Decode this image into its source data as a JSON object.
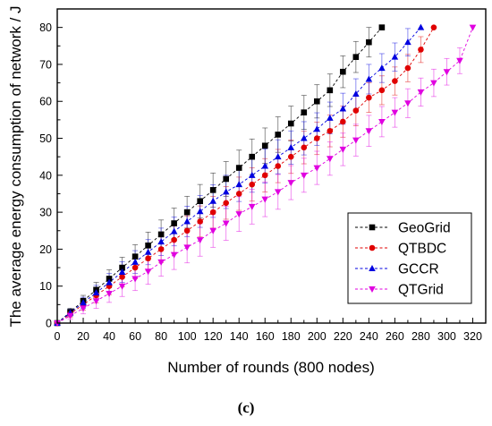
{
  "figure": {
    "caption": "(c)"
  },
  "chart_data": {
    "type": "line",
    "xlabel": "Number of rounds (800 nodes)",
    "ylabel": "The average energy consumption of network / J",
    "xlim": [
      0,
      330
    ],
    "ylim": [
      0,
      85
    ],
    "xticks": [
      0,
      20,
      40,
      60,
      80,
      100,
      120,
      140,
      160,
      180,
      200,
      220,
      240,
      260,
      280,
      300,
      320
    ],
    "yticks": [
      0,
      10,
      20,
      30,
      40,
      50,
      60,
      70,
      80
    ],
    "grid": false,
    "error_bars": true,
    "legend_position": "bottom-right",
    "series": [
      {
        "name": "GeoGrid",
        "color": "#000000",
        "marker": "square",
        "x": [
          0,
          10,
          20,
          30,
          40,
          50,
          60,
          70,
          80,
          90,
          100,
          110,
          120,
          130,
          140,
          150,
          160,
          170,
          180,
          190,
          200,
          210,
          220,
          230,
          240,
          250
        ],
        "y": [
          0,
          3,
          6,
          9,
          12,
          15,
          18,
          21,
          24,
          27,
          30,
          33,
          36,
          39,
          42,
          45,
          48,
          51,
          54,
          57,
          60,
          63,
          68,
          72,
          76,
          80
        ],
        "err": [
          0.5,
          1,
          1.5,
          2,
          2.4,
          2.8,
          3.2,
          3.6,
          3.9,
          4.1,
          4.3,
          4.5,
          4.6,
          4.7,
          4.8,
          4.8,
          4.8,
          4.8,
          4.7,
          4.6,
          4.5,
          4.4,
          4.3,
          4.2,
          4,
          0
        ]
      },
      {
        "name": "QTBDC",
        "color": "#e00000",
        "marker": "circle",
        "x": [
          0,
          10,
          20,
          30,
          40,
          50,
          60,
          70,
          80,
          90,
          100,
          110,
          120,
          130,
          140,
          150,
          160,
          170,
          180,
          190,
          200,
          210,
          220,
          230,
          240,
          250,
          260,
          270,
          280,
          290
        ],
        "y": [
          0,
          2.5,
          5,
          7.5,
          10,
          12.5,
          15,
          17.5,
          20,
          22.5,
          25,
          27.5,
          30,
          32.5,
          35,
          37.5,
          40,
          42.5,
          45,
          47.5,
          50,
          52,
          54.5,
          57.5,
          61,
          63,
          65.5,
          69,
          74,
          80
        ],
        "err": [
          0.5,
          1,
          1.5,
          2,
          2.3,
          2.7,
          3,
          3.3,
          3.6,
          3.8,
          4,
          4.2,
          4.3,
          4.4,
          4.5,
          4.5,
          4.5,
          4.5,
          4.5,
          4.4,
          4.4,
          4.3,
          4.2,
          4.1,
          4,
          3.9,
          3.8,
          3.7,
          3.5,
          0
        ]
      },
      {
        "name": "GCCR",
        "color": "#0000e0",
        "marker": "triangle-up",
        "x": [
          0,
          10,
          20,
          30,
          40,
          50,
          60,
          70,
          80,
          90,
          100,
          110,
          120,
          130,
          140,
          150,
          160,
          170,
          180,
          190,
          200,
          210,
          220,
          230,
          240,
          250,
          260,
          270,
          280
        ],
        "y": [
          0,
          2.8,
          5.5,
          8.2,
          11,
          13.8,
          16.5,
          19.2,
          22,
          24.8,
          27.5,
          30.2,
          33,
          35.5,
          37.5,
          40,
          42.5,
          45,
          47.5,
          50,
          52.5,
          55.5,
          58,
          62,
          66,
          69,
          72,
          76,
          80
        ],
        "err": [
          0.5,
          1,
          1.5,
          2,
          2.4,
          2.8,
          3.1,
          3.4,
          3.7,
          3.9,
          4.1,
          4.3,
          4.4,
          4.5,
          4.6,
          4.6,
          4.6,
          4.6,
          4.5,
          4.5,
          4.4,
          4.3,
          4.2,
          4.1,
          4,
          3.9,
          3.8,
          3.7,
          0
        ]
      },
      {
        "name": "QTGrid",
        "color": "#e000e0",
        "marker": "triangle-down",
        "x": [
          0,
          10,
          20,
          30,
          40,
          50,
          60,
          70,
          80,
          90,
          100,
          110,
          120,
          130,
          140,
          150,
          160,
          170,
          180,
          190,
          200,
          210,
          220,
          230,
          240,
          250,
          260,
          270,
          280,
          290,
          300,
          310,
          320
        ],
        "y": [
          0,
          2,
          4,
          6,
          8,
          10,
          12,
          14,
          16.5,
          18.5,
          20.5,
          22.5,
          25,
          27,
          29.5,
          31.5,
          33.5,
          35.5,
          38,
          40,
          42,
          44.5,
          47,
          49.5,
          52,
          54.5,
          57,
          59.5,
          62.5,
          65,
          68,
          71,
          80
        ],
        "err": [
          0.5,
          1,
          1.5,
          2,
          2.4,
          2.8,
          3.2,
          3.5,
          3.8,
          4,
          4.2,
          4.4,
          4.5,
          4.6,
          4.7,
          4.7,
          4.7,
          4.7,
          4.6,
          4.6,
          4.5,
          4.5,
          4.4,
          4.3,
          4.2,
          4.1,
          4,
          3.9,
          3.8,
          3.7,
          3.6,
          3.5,
          0
        ]
      }
    ]
  }
}
